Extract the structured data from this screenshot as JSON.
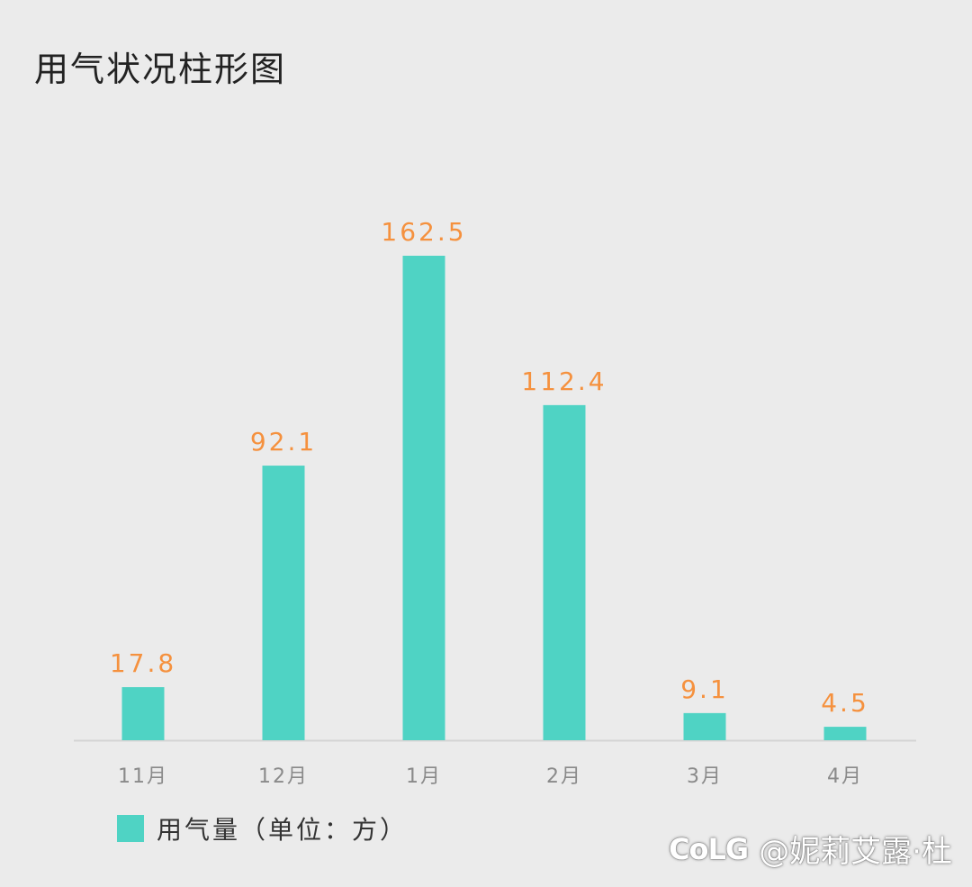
{
  "title": "用气状况柱形图",
  "colors": {
    "background": "#ebebeb",
    "bar": "#4fd3c4",
    "value_label": "#f5913e",
    "tick_label": "#8a8a8a",
    "axis": "#d4d4d4"
  },
  "legend": {
    "label": "用气量（单位：方）"
  },
  "watermark": {
    "logo": "CoLG",
    "text": "@妮莉艾露·杜"
  },
  "chart_data": {
    "type": "bar",
    "categories": [
      "11月",
      "12月",
      "1月",
      "2月",
      "3月",
      "4月"
    ],
    "series": [
      {
        "name": "用气量（单位：方）",
        "values": [
          17.8,
          92.1,
          162.5,
          112.4,
          9.1,
          4.5
        ]
      }
    ],
    "value_labels": [
      "17.8",
      "92.1",
      "162.5",
      "112.4",
      "9.1",
      "4.5"
    ],
    "title": "用气状况柱形图",
    "xlabel": "",
    "ylabel": "",
    "ylim": [
      0,
      162.5
    ],
    "grid": false,
    "legend_position": "bottom-left"
  }
}
